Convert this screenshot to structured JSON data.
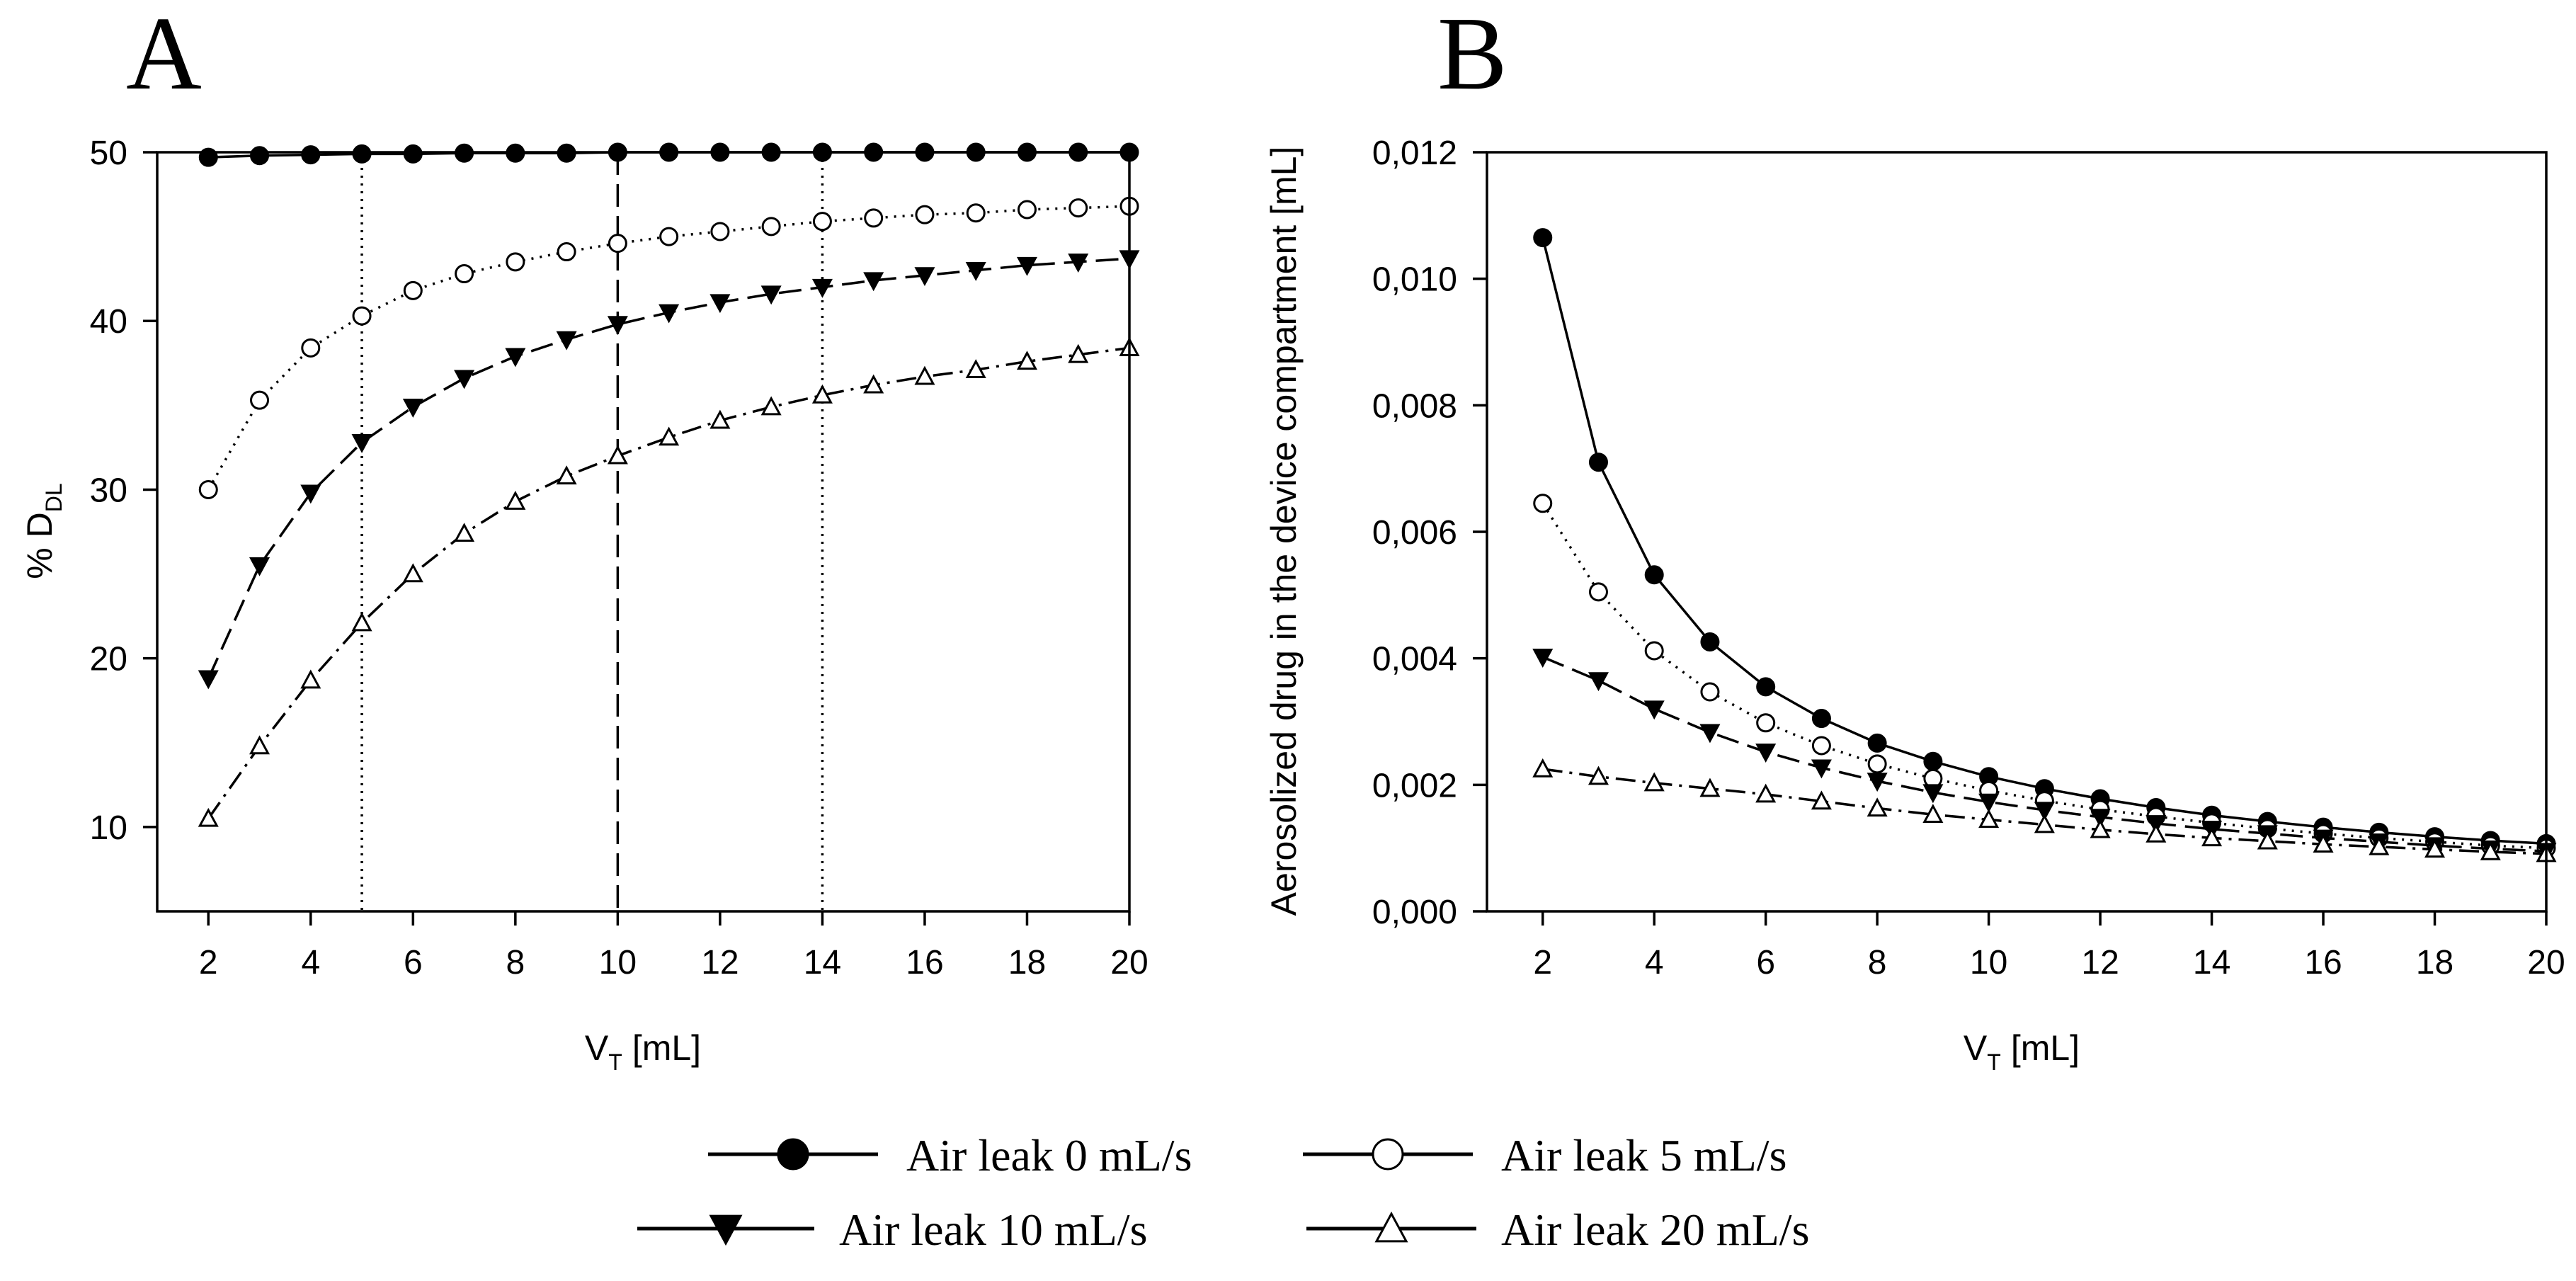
{
  "colors": {
    "ink": "#000000",
    "paper": "#ffffff"
  },
  "chart_data": [
    {
      "panel": "A",
      "type": "line",
      "title": "",
      "xlabel_main": "V",
      "xlabel_sub": "T",
      "xlabel_unit": "[mL]",
      "ylabel_main": "% D",
      "ylabel_sub": "DL",
      "xlim": [
        1,
        20
      ],
      "ylim": [
        5,
        50
      ],
      "xticks": [
        2,
        4,
        6,
        8,
        10,
        12,
        14,
        16,
        18,
        20
      ],
      "xtick_labels": [
        "2",
        "4",
        "6",
        "8",
        "10",
        "12",
        "14",
        "16",
        "18",
        "20"
      ],
      "yticks": [
        10,
        20,
        30,
        40,
        50
      ],
      "ytick_labels": [
        "10",
        "20",
        "30",
        "40",
        "50"
      ],
      "x": [
        2,
        3,
        4,
        5,
        6,
        7,
        8,
        9,
        10,
        11,
        12,
        13,
        14,
        15,
        16,
        17,
        18,
        19,
        20
      ],
      "reference_lines": [
        {
          "x": 5,
          "style": "dotted"
        },
        {
          "x": 10,
          "style": "dashed"
        },
        {
          "x": 14,
          "style": "dotted"
        }
      ],
      "series": [
        {
          "name": "Air leak 0 mL/s",
          "marker": "filled-circle",
          "line": "solid",
          "values": [
            49.7,
            49.8,
            49.85,
            49.9,
            49.9,
            49.95,
            49.95,
            49.95,
            50,
            50,
            50,
            50,
            50,
            50,
            50,
            50,
            50,
            50,
            50
          ]
        },
        {
          "name": "Air leak 5 mL/s",
          "marker": "open-circle",
          "line": "dotted",
          "values": [
            30,
            35.3,
            38.4,
            40.3,
            41.8,
            42.8,
            43.5,
            44.1,
            44.6,
            45,
            45.3,
            45.6,
            45.9,
            46.1,
            46.3,
            46.4,
            46.6,
            46.7,
            46.8
          ]
        },
        {
          "name": "Air leak 10 mL/s",
          "marker": "filled-triangle-down",
          "line": "dashed",
          "values": [
            18.8,
            25.5,
            29.8,
            32.8,
            34.9,
            36.6,
            37.9,
            38.9,
            39.8,
            40.5,
            41.1,
            41.6,
            42,
            42.4,
            42.7,
            43,
            43.3,
            43.5,
            43.7
          ]
        },
        {
          "name": "Air leak 20 mL/s",
          "marker": "open-triangle-up",
          "line": "dash-dot",
          "values": [
            10.5,
            14.8,
            18.7,
            22.1,
            25,
            27.4,
            29.3,
            30.8,
            32,
            33.1,
            34.1,
            34.9,
            35.6,
            36.2,
            36.7,
            37.1,
            37.6,
            38,
            38.4
          ]
        }
      ]
    },
    {
      "panel": "B",
      "type": "line",
      "title": "",
      "xlabel_main": "V",
      "xlabel_sub": "T",
      "xlabel_unit": "[mL]",
      "ylabel": "Aerosolized drug in the device compartment [mL]",
      "xlim": [
        1,
        20
      ],
      "ylim": [
        0,
        0.012
      ],
      "xticks": [
        2,
        4,
        6,
        8,
        10,
        12,
        14,
        16,
        18,
        20
      ],
      "xtick_labels": [
        "2",
        "4",
        "6",
        "8",
        "10",
        "12",
        "14",
        "16",
        "18",
        "20"
      ],
      "yticks": [
        0,
        0.002,
        0.004,
        0.006,
        0.008,
        0.01,
        0.012
      ],
      "ytick_labels": [
        "0,000",
        "0,002",
        "0,004",
        "0,006",
        "0,008",
        "0,010",
        "0,012"
      ],
      "x": [
        2,
        3,
        4,
        5,
        6,
        7,
        8,
        9,
        10,
        11,
        12,
        13,
        14,
        15,
        16,
        17,
        18,
        19,
        20
      ],
      "series": [
        {
          "name": "Air leak 0 mL/s",
          "marker": "filled-circle",
          "line": "solid",
          "values": [
            0.01065,
            0.0071,
            0.00532,
            0.00426,
            0.00355,
            0.00305,
            0.00266,
            0.00237,
            0.00213,
            0.00194,
            0.00178,
            0.00164,
            0.00152,
            0.00142,
            0.00133,
            0.00125,
            0.00118,
            0.00112,
            0.00107
          ]
        },
        {
          "name": "Air leak 5 mL/s",
          "marker": "open-circle",
          "line": "dotted",
          "values": [
            0.00645,
            0.00505,
            0.00412,
            0.00347,
            0.00298,
            0.00262,
            0.00233,
            0.0021,
            0.00191,
            0.00175,
            0.00161,
            0.0015,
            0.0014,
            0.00131,
            0.00123,
            0.00116,
            0.0011,
            0.00104,
            0.001
          ]
        },
        {
          "name": "Air leak 10 mL/s",
          "marker": "filled-triangle-down",
          "line": "dashed",
          "values": [
            0.00402,
            0.00365,
            0.0032,
            0.00283,
            0.00252,
            0.00227,
            0.00206,
            0.00188,
            0.00173,
            0.0016,
            0.00149,
            0.00139,
            0.0013,
            0.00123,
            0.00116,
            0.0011,
            0.00104,
            0.00099,
            0.00095
          ]
        },
        {
          "name": "Air leak 20 mL/s",
          "marker": "open-triangle-up",
          "line": "dash-dot",
          "values": [
            0.00225,
            0.00213,
            0.00203,
            0.00194,
            0.00185,
            0.00174,
            0.00163,
            0.00153,
            0.00145,
            0.00137,
            0.00129,
            0.00122,
            0.00116,
            0.00111,
            0.00106,
            0.00102,
            0.00098,
            0.00094,
            0.00091
          ]
        }
      ]
    }
  ],
  "legend": [
    {
      "label": "Air leak 0 mL/s",
      "marker": "filled-circle"
    },
    {
      "label": "Air leak 5 mL/s",
      "marker": "open-circle"
    },
    {
      "label": "Air leak 10 mL/s",
      "marker": "filled-triangle-down"
    },
    {
      "label": "Air leak 20 mL/s",
      "marker": "open-triangle-up"
    }
  ]
}
